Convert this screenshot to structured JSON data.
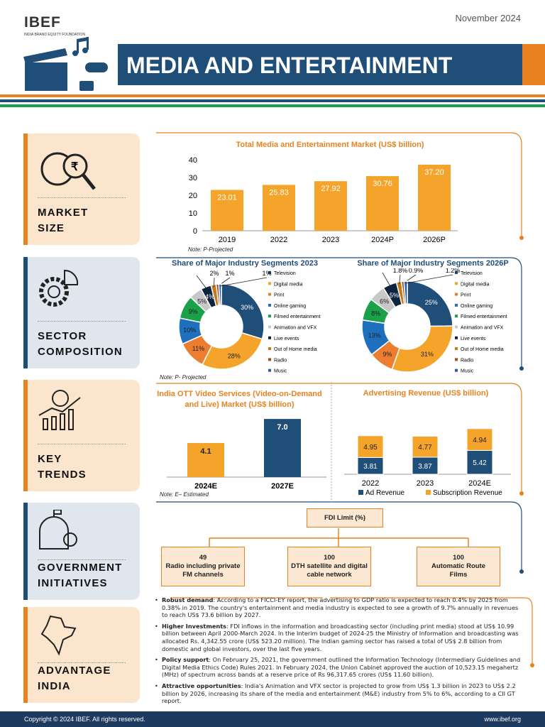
{
  "header": {
    "date": "November 2024",
    "logo_text": "IBEF",
    "logo_sub": "INDIA BRAND EQUITY FOUNDATION",
    "title": "MEDIA AND ENTERTAINMENT"
  },
  "colors": {
    "navy": "#1f4e79",
    "orange": "#e8821e",
    "gold": "#f4a42a",
    "green": "#1aa14a"
  },
  "sections": [
    {
      "label1": "MARKET",
      "label2": "SIZE",
      "icon": "globe-magnifier-rupee-icon"
    },
    {
      "label1": "SECTOR",
      "label2": "COMPOSITION",
      "icon": "gear-pie-icon"
    },
    {
      "label1": "KEY",
      "label2": "TRENDS",
      "icon": "globe-growth-chart-icon"
    },
    {
      "label1": "GOVERNMENT",
      "label2": "INITIATIVES",
      "icon": "government-building-icon"
    },
    {
      "label1": "ADVANTAGE",
      "label2": "INDIA",
      "icon": "india-map-icon"
    }
  ],
  "chart_data": [
    {
      "type": "bar",
      "title": "Total Media and Entertainment Market (US$ billion)",
      "categories": [
        "2019",
        "2022",
        "2023",
        "2024P",
        "2026P"
      ],
      "values": [
        23.01,
        25.83,
        27.92,
        30.76,
        37.2
      ],
      "labels": [
        "23.01",
        "25.83",
        "27.92",
        "30.76",
        "37.20"
      ],
      "ylim": [
        0,
        40
      ],
      "yticks": [
        "0",
        "10",
        "20",
        "30",
        "40"
      ],
      "note": "Note: P-Projected",
      "color": "#f4a42a"
    },
    {
      "type": "pie",
      "title": "Share of Major Industry Segments 2023",
      "categories": [
        "Television",
        "Digital media",
        "Print",
        "Online gaming",
        "Filmed entertainment",
        "Animation and VFX",
        "Live events",
        "Out of Home media",
        "Radio",
        "Music"
      ],
      "values": [
        30,
        28,
        11,
        10,
        9,
        5,
        4,
        2,
        1,
        1
      ],
      "labels": [
        "30%",
        "28%",
        "11%",
        "10%",
        "9%",
        "5%",
        "4%",
        "2%",
        "1%",
        "1%"
      ],
      "colors": [
        "#1f4e79",
        "#f4a42a",
        "#ed7d31",
        "#1f6fbf",
        "#1aa14a",
        "#c8c8c8",
        "#0d2440",
        "#c7781b",
        "#a0521a",
        "#2a5fa8"
      ],
      "note": "Note: P- Projected"
    },
    {
      "type": "pie",
      "title": "Share of Major Industry Segments 2026P",
      "categories": [
        "Television",
        "Digital media",
        "Print",
        "Online gaming",
        "Filmed entertainment",
        "Animation and VFX",
        "Live events",
        "Out of Home media",
        "Radio",
        "Music"
      ],
      "values": [
        25,
        31,
        9,
        13,
        8,
        6,
        5,
        1.8,
        0.9,
        1.2
      ],
      "labels": [
        "25%",
        "31%",
        "9%",
        "13%",
        "8%",
        "6%",
        "5%",
        "1.8%",
        "0.9%",
        "1.2%"
      ],
      "colors": [
        "#1f4e79",
        "#f4a42a",
        "#ed7d31",
        "#1f6fbf",
        "#1aa14a",
        "#c8c8c8",
        "#0d2440",
        "#c7781b",
        "#a0521a",
        "#2a5fa8"
      ]
    },
    {
      "type": "bar",
      "title": "India OTT Video Services (Video-on-Demand and Live) Market (US$ billion)",
      "categories": [
        "2024E",
        "2027E"
      ],
      "values": [
        4.1,
        7.0
      ],
      "labels": [
        "4.1",
        "7.0"
      ],
      "colors": [
        "#f4a42a",
        "#1f4e79"
      ],
      "note": "Note: E– Estimated"
    },
    {
      "type": "bar",
      "stacked": true,
      "title": "Advertising Revenue (US$ billion)",
      "categories": [
        "2022",
        "2023",
        "2024E"
      ],
      "series": [
        {
          "name": "Ad Revenue",
          "values": [
            3.81,
            3.87,
            5.42
          ],
          "labels": [
            "3.81",
            "3.87",
            "5.42"
          ],
          "color": "#1f4e79"
        },
        {
          "name": "Subscription Revenue",
          "values": [
            4.95,
            4.77,
            4.94
          ],
          "labels": [
            "4.95",
            "4.77",
            "4.94"
          ],
          "color": "#f4a42a"
        }
      ],
      "legend": "bottom"
    }
  ],
  "fdi": {
    "title": "FDI Limit (%)",
    "boxes": [
      {
        "value": "49",
        "text": "Radio including private FM channels"
      },
      {
        "value": "100",
        "text": "DTH satellite and digital cable network"
      },
      {
        "value": "100",
        "text": "Automatic Route Films"
      }
    ]
  },
  "bullets": [
    {
      "head": "Robust demand",
      "text": ": According to a FICCI-EY report, the advertising to GDP ratio is expected to reach 0.4% by 2025 from 0.38% in 2019. The country's entertainment and media industry is expected to see a growth of 9.7% annually in revenues to reach US$ 73.6 billion by 2027."
    },
    {
      "head": "Higher Investments",
      "text": ": FDI inflows in the information and broadcasting sector (including print media) stood at US$ 10.99 billion between April 2000-March 2024. In the Interim budget of 2024-25 the Ministry of Information and broadcasting was allocated Rs. 4,342.55 crore (US$ 523.20 million). The Indian gaming sector has raised a total of US$ 2.8 billion from domestic and global investors, over the last five years."
    },
    {
      "head": "Policy support",
      "text": ": On February 25, 2021, the government outlined the Information Technology (Intermediary Guidelines and Digital Media Ethics Code) Rules 2021. In February 2024, the Union Cabinet approved the auction of 10,523.15 megahertz (MHz) of spectrum across bands at a reserve price of Rs 96,317.65 crores (US$ 11.60 billion)."
    },
    {
      "head": "Attractive opportunities",
      "text": ": India's Animation and VFX sector is projected to grow from US$ 1.3 billion in 2023 to US$ 2.2 billion by 2026, increasing its share of the media and entertainment (M&E) industry from 5% to 6%, according to a CII GT report."
    }
  ],
  "footer": {
    "copyright": "Copyright © 2024 IBEF. All rights reserved.",
    "site": "www.ibef.org"
  }
}
